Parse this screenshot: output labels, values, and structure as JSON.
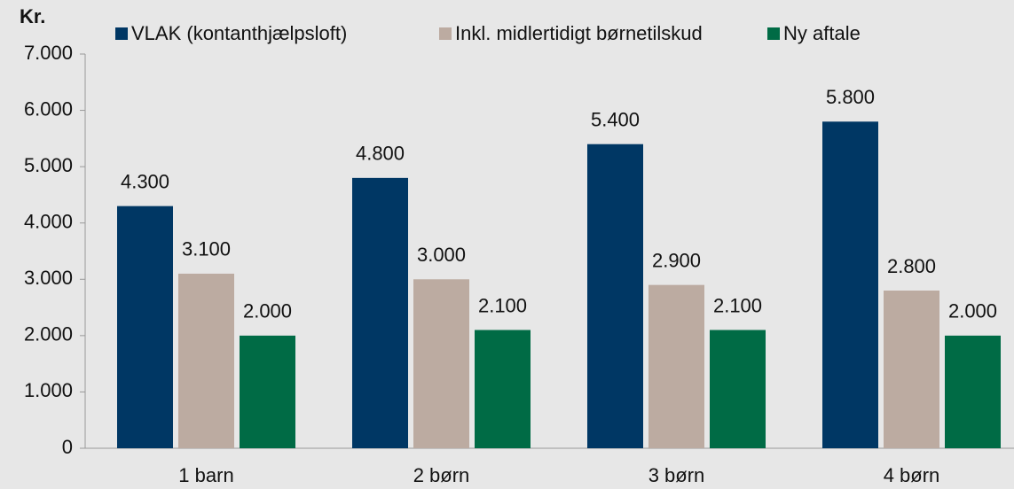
{
  "chart_data": {
    "type": "bar",
    "y_axis_label": "Kr.",
    "categories": [
      "1 barn",
      "2 børn",
      "3 børn",
      "4 børn"
    ],
    "series": [
      {
        "name": "VLAK (kontanthjælpsloft)",
        "color": "#003764",
        "values": [
          4300,
          4800,
          5400,
          5800
        ],
        "value_labels": [
          "4.300",
          "4.800",
          "5.400",
          "5.800"
        ]
      },
      {
        "name": "Inkl. midlertidigt børnetilskud",
        "color": "#bcaba1",
        "values": [
          3100,
          3000,
          2900,
          2800
        ],
        "value_labels": [
          "3.100",
          "3.000",
          "2.900",
          "2.800"
        ]
      },
      {
        "name": "Ny aftale",
        "color": "#006b45",
        "values": [
          2000,
          2100,
          2100,
          2000
        ],
        "value_labels": [
          "2.000",
          "2.100",
          "2.100",
          "2.000"
        ]
      }
    ],
    "ylim": [
      0,
      7000
    ],
    "yticks": [
      0,
      {
        "value": 1000,
        "label": "1.000"
      },
      {
        "value": 2000,
        "label": "2.000"
      },
      {
        "value": 3000,
        "label": "3.000"
      },
      {
        "value": 4000,
        "label": "4.000"
      },
      {
        "value": 5000,
        "label": "5.000"
      },
      {
        "value": 6000,
        "label": "6.000"
      },
      {
        "value": 7000,
        "label": "7.000"
      }
    ],
    "legend": "top"
  }
}
